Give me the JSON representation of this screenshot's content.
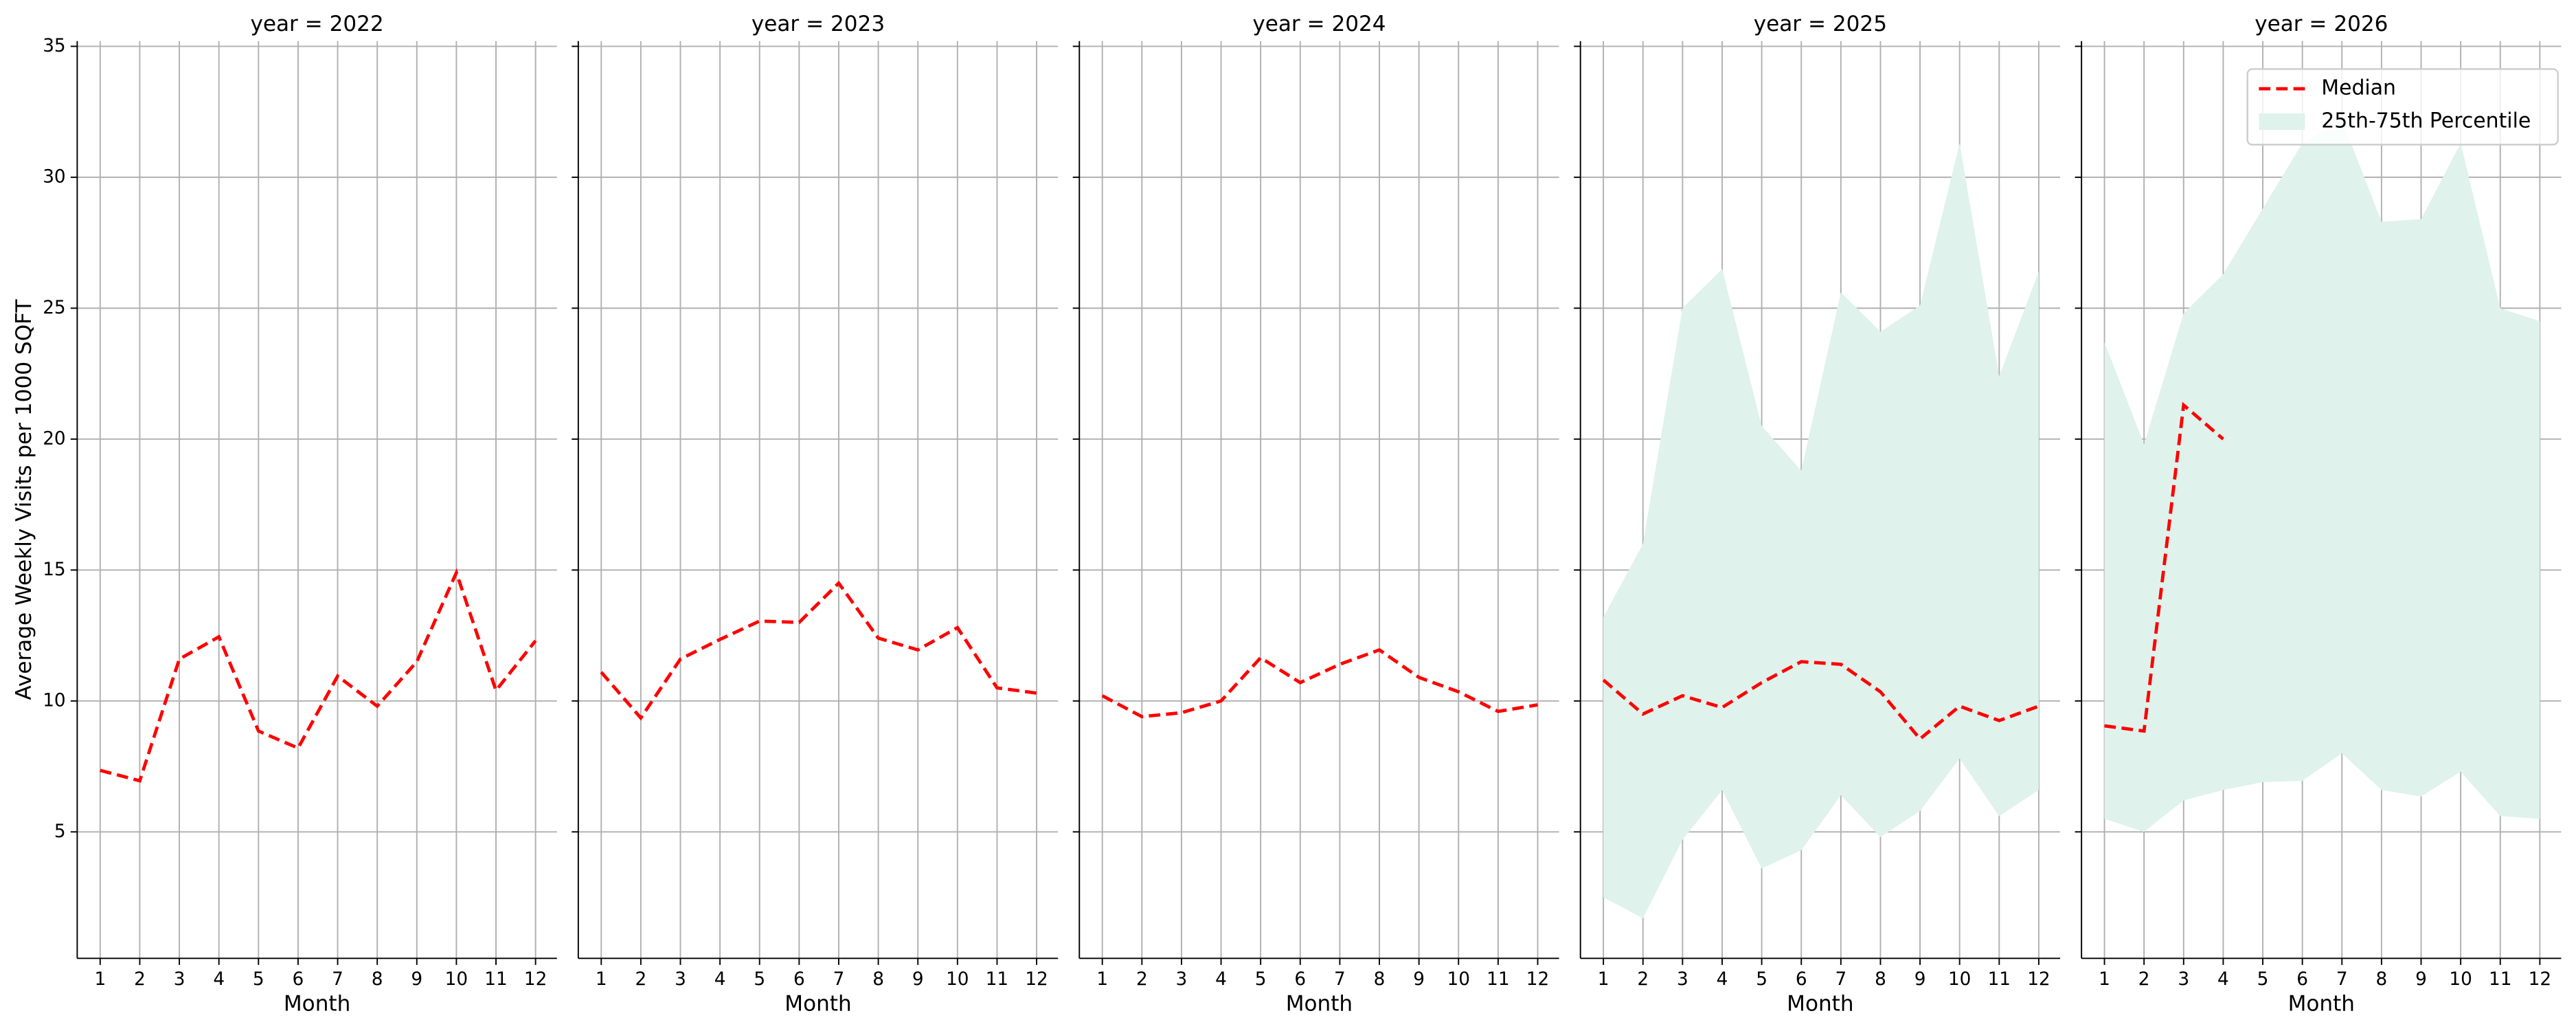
{
  "chart_data": [
    {
      "type": "line",
      "title": "year = 2022",
      "xlabel": "Month",
      "ylabel": "Average Weekly Visits per 1000 SQFT",
      "x": [
        1,
        2,
        3,
        4,
        5,
        6,
        7,
        8,
        9,
        10,
        11,
        12
      ],
      "xlim": [
        0.42,
        12.54
      ],
      "xticks": [
        1,
        2,
        3,
        4,
        5,
        6,
        7,
        8,
        9,
        10,
        11,
        12
      ],
      "ylim": [
        0.17,
        35.2
      ],
      "yticks": [
        5,
        10,
        15,
        20,
        25,
        30,
        35
      ],
      "grid": true,
      "series": [
        {
          "name": "Median",
          "color": "#ff0000",
          "values": [
            7.35,
            6.95,
            11.6,
            12.45,
            8.85,
            8.2,
            10.95,
            9.8,
            11.5,
            14.9,
            10.4,
            12.3
          ]
        }
      ]
    },
    {
      "type": "line",
      "title": "year = 2023",
      "xlabel": "Month",
      "x": [
        1,
        2,
        3,
        4,
        5,
        6,
        7,
        8,
        9,
        10,
        11,
        12
      ],
      "xlim": [
        0.42,
        12.54
      ],
      "xticks": [
        1,
        2,
        3,
        4,
        5,
        6,
        7,
        8,
        9,
        10,
        11,
        12
      ],
      "ylim": [
        0.17,
        35.2
      ],
      "yticks": [
        5,
        10,
        15,
        20,
        25,
        30,
        35
      ],
      "grid": true,
      "series": [
        {
          "name": "Median",
          "color": "#ff0000",
          "values": [
            11.1,
            9.35,
            11.6,
            12.35,
            13.05,
            13.0,
            14.5,
            12.4,
            11.95,
            12.8,
            10.5,
            10.3
          ]
        }
      ]
    },
    {
      "type": "line",
      "title": "year = 2024",
      "xlabel": "Month",
      "x": [
        1,
        2,
        3,
        4,
        5,
        6,
        7,
        8,
        9,
        10,
        11,
        12
      ],
      "xlim": [
        0.42,
        12.54
      ],
      "xticks": [
        1,
        2,
        3,
        4,
        5,
        6,
        7,
        8,
        9,
        10,
        11,
        12
      ],
      "ylim": [
        0.17,
        35.2
      ],
      "yticks": [
        5,
        10,
        15,
        20,
        25,
        30,
        35
      ],
      "grid": true,
      "series": [
        {
          "name": "Median",
          "color": "#ff0000",
          "values": [
            10.2,
            9.4,
            9.55,
            10.0,
            11.65,
            10.7,
            11.4,
            11.95,
            10.9,
            10.35,
            9.6,
            9.85
          ]
        }
      ]
    },
    {
      "type": "line",
      "title": "year = 2025",
      "xlabel": "Month",
      "x": [
        1,
        2,
        3,
        4,
        5,
        6,
        7,
        8,
        9,
        10,
        11,
        12
      ],
      "xlim": [
        0.42,
        12.54
      ],
      "xticks": [
        1,
        2,
        3,
        4,
        5,
        6,
        7,
        8,
        9,
        10,
        11,
        12
      ],
      "ylim": [
        0.17,
        35.2
      ],
      "yticks": [
        5,
        10,
        15,
        20,
        25,
        30,
        35
      ],
      "grid": true,
      "series": [
        {
          "name": "Median",
          "color": "#ff0000",
          "values": [
            10.8,
            9.5,
            10.2,
            9.75,
            10.7,
            11.5,
            11.4,
            10.35,
            8.55,
            9.8,
            9.25,
            9.8
          ]
        },
        {
          "name": "25th-75th Percentile",
          "color": "#dff2ec",
          "lower": [
            2.5,
            1.7,
            4.7,
            6.6,
            3.6,
            4.3,
            6.4,
            4.8,
            5.8,
            7.8,
            5.6,
            6.6
          ],
          "upper": [
            13.2,
            16.0,
            25.0,
            26.5,
            20.5,
            18.8,
            25.6,
            24.1,
            25.1,
            31.3,
            22.4,
            26.4
          ]
        }
      ]
    },
    {
      "type": "line",
      "title": "year = 2026",
      "xlabel": "Month",
      "legend": "upper right",
      "x": [
        1,
        2,
        3,
        4,
        5,
        6,
        7,
        8,
        9,
        10,
        11,
        12
      ],
      "xlim": [
        0.42,
        12.54
      ],
      "xticks": [
        1,
        2,
        3,
        4,
        5,
        6,
        7,
        8,
        9,
        10,
        11,
        12
      ],
      "ylim": [
        0.17,
        35.2
      ],
      "yticks": [
        5,
        10,
        15,
        20,
        25,
        30,
        35
      ],
      "grid": true,
      "series": [
        {
          "name": "Median",
          "color": "#ff0000",
          "values": [
            9.05,
            8.85,
            21.3,
            20.0,
            null,
            null,
            null,
            null,
            null,
            null,
            null,
            null
          ]
        },
        {
          "name": "25th-75th Percentile",
          "color": "#dff2ec",
          "lower": [
            5.5,
            5.0,
            6.2,
            6.6,
            6.9,
            6.95,
            8.0,
            6.6,
            6.35,
            7.3,
            5.6,
            5.5
          ],
          "upper": [
            23.7,
            19.8,
            24.8,
            26.3,
            28.8,
            31.3,
            32.2,
            28.3,
            28.4,
            31.3,
            25.0,
            24.5
          ]
        }
      ]
    }
  ]
}
